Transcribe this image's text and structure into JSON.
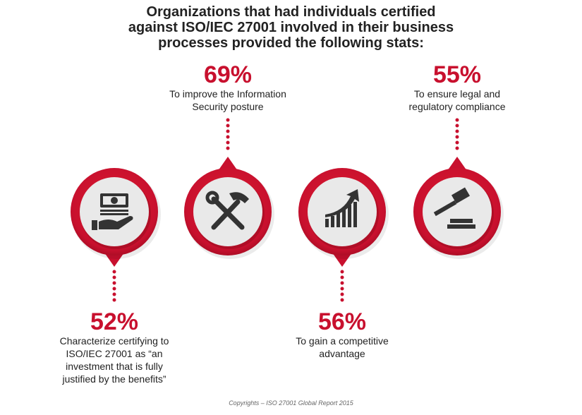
{
  "title": [
    "Organizations that had individuals certified",
    "against ISO/IEC 27001 involved in their business",
    "processes provided the following stats:"
  ],
  "stats": [
    {
      "percent": "52%",
      "label": [
        "Characterize certifying to",
        "ISO/IEC 27001 as “an",
        "investment that is fully",
        "justified by the benefits”"
      ],
      "icon": "money-hand-icon"
    },
    {
      "percent": "69%",
      "label": [
        "To improve the Information",
        "Security posture"
      ],
      "icon": "wrench-hammer-icon"
    },
    {
      "percent": "56%",
      "label": [
        "To gain a competitive",
        "advantage"
      ],
      "icon": "growth-chart-icon"
    },
    {
      "percent": "55%",
      "label": [
        "To ensure legal and",
        "regulatory compliance"
      ],
      "icon": "gavel-icon"
    }
  ],
  "copyright": "Copyrights – ISO 27001 Global Report 2015",
  "colors": {
    "accent": "#c8102e",
    "icon": "#333333",
    "inner": "#e9e9e9"
  }
}
